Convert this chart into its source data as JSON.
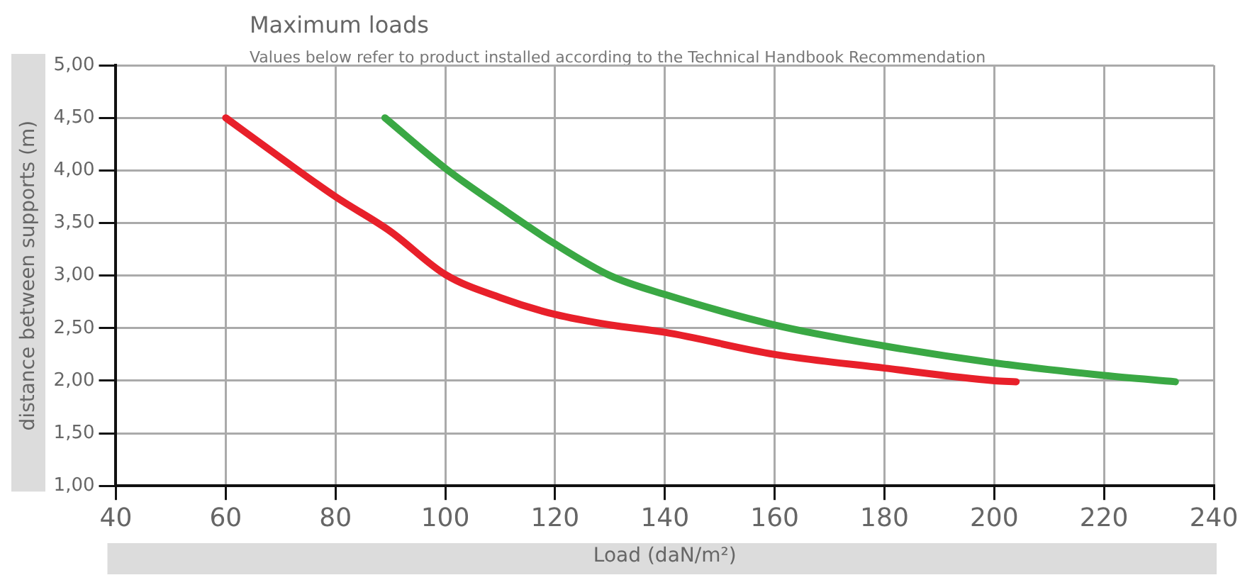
{
  "chart_data": {
    "type": "line",
    "title": "Maximum loads",
    "subtitle": "Values below refer to product installed according to the Technical Handbook Recommendation",
    "xlabel": "Load (daN/m²)",
    "ylabel": "distance between supports (m)",
    "series": [
      {
        "color": "#e8202a",
        "x": [
          60,
          70,
          80,
          90,
          100,
          110,
          120,
          130,
          140,
          160,
          180,
          200,
          204
        ],
        "values": [
          4.5,
          4.12,
          3.75,
          3.42,
          3.01,
          2.79,
          2.63,
          2.53,
          2.46,
          2.25,
          2.12,
          2.0,
          1.99
        ]
      },
      {
        "color": "#3aa844",
        "x": [
          89,
          100,
          110,
          120,
          130,
          140,
          160,
          180,
          200,
          220,
          233
        ],
        "values": [
          4.5,
          4.02,
          3.65,
          3.3,
          3.0,
          2.82,
          2.53,
          2.33,
          2.17,
          2.05,
          1.99
        ]
      }
    ],
    "xlim": [
      40,
      240
    ],
    "xticks": [
      40,
      60,
      80,
      100,
      120,
      140,
      160,
      180,
      200,
      220,
      240
    ],
    "ylim": [
      1,
      5
    ],
    "yticks": [
      {
        "value": 1,
        "label": "1,00"
      },
      {
        "value": 1.5,
        "label": "1,50"
      },
      {
        "value": 2,
        "label": "2,00"
      },
      {
        "value": 2.5,
        "label": "2,50"
      },
      {
        "value": 3,
        "label": "3,00"
      },
      {
        "value": 3.5,
        "label": "3,50"
      },
      {
        "value": 4,
        "label": "4,00"
      },
      {
        "value": 4.5,
        "label": "4,50"
      },
      {
        "value": 5,
        "label": "5,00"
      }
    ],
    "grid": true,
    "legend": false,
    "marker": "none",
    "line_style": "solid"
  }
}
